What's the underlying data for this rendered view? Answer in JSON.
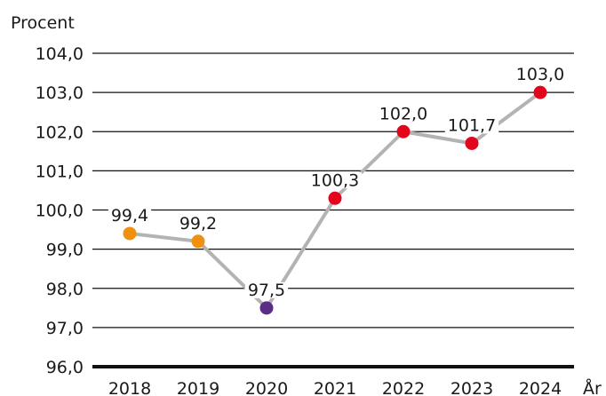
{
  "chart_data": {
    "type": "line",
    "ylabel": "Procent",
    "xlabel": "År",
    "ylim": [
      96,
      104
    ],
    "ytick_step": 1,
    "ytick_labels": [
      "96,0",
      "97,0",
      "98,0",
      "99,0",
      "100,0",
      "101,0",
      "102,0",
      "103,0",
      "104,0"
    ],
    "grid": true,
    "categories": [
      "2018",
      "2019",
      "2020",
      "2021",
      "2022",
      "2023",
      "2024"
    ],
    "series": [
      {
        "values": [
          99.4,
          99.2,
          97.5,
          100.3,
          102.0,
          101.7,
          103.0
        ],
        "value_labels": [
          "99,4",
          "99,2",
          "97,5",
          "100,3",
          "102,0",
          "101,7",
          "103,0"
        ],
        "line_color": "#b3b3b3",
        "point_colors": [
          "#f0900f",
          "#f0900f",
          "#5b2d86",
          "#e3051b",
          "#e3051b",
          "#e3051b",
          "#e3051b"
        ]
      }
    ]
  }
}
